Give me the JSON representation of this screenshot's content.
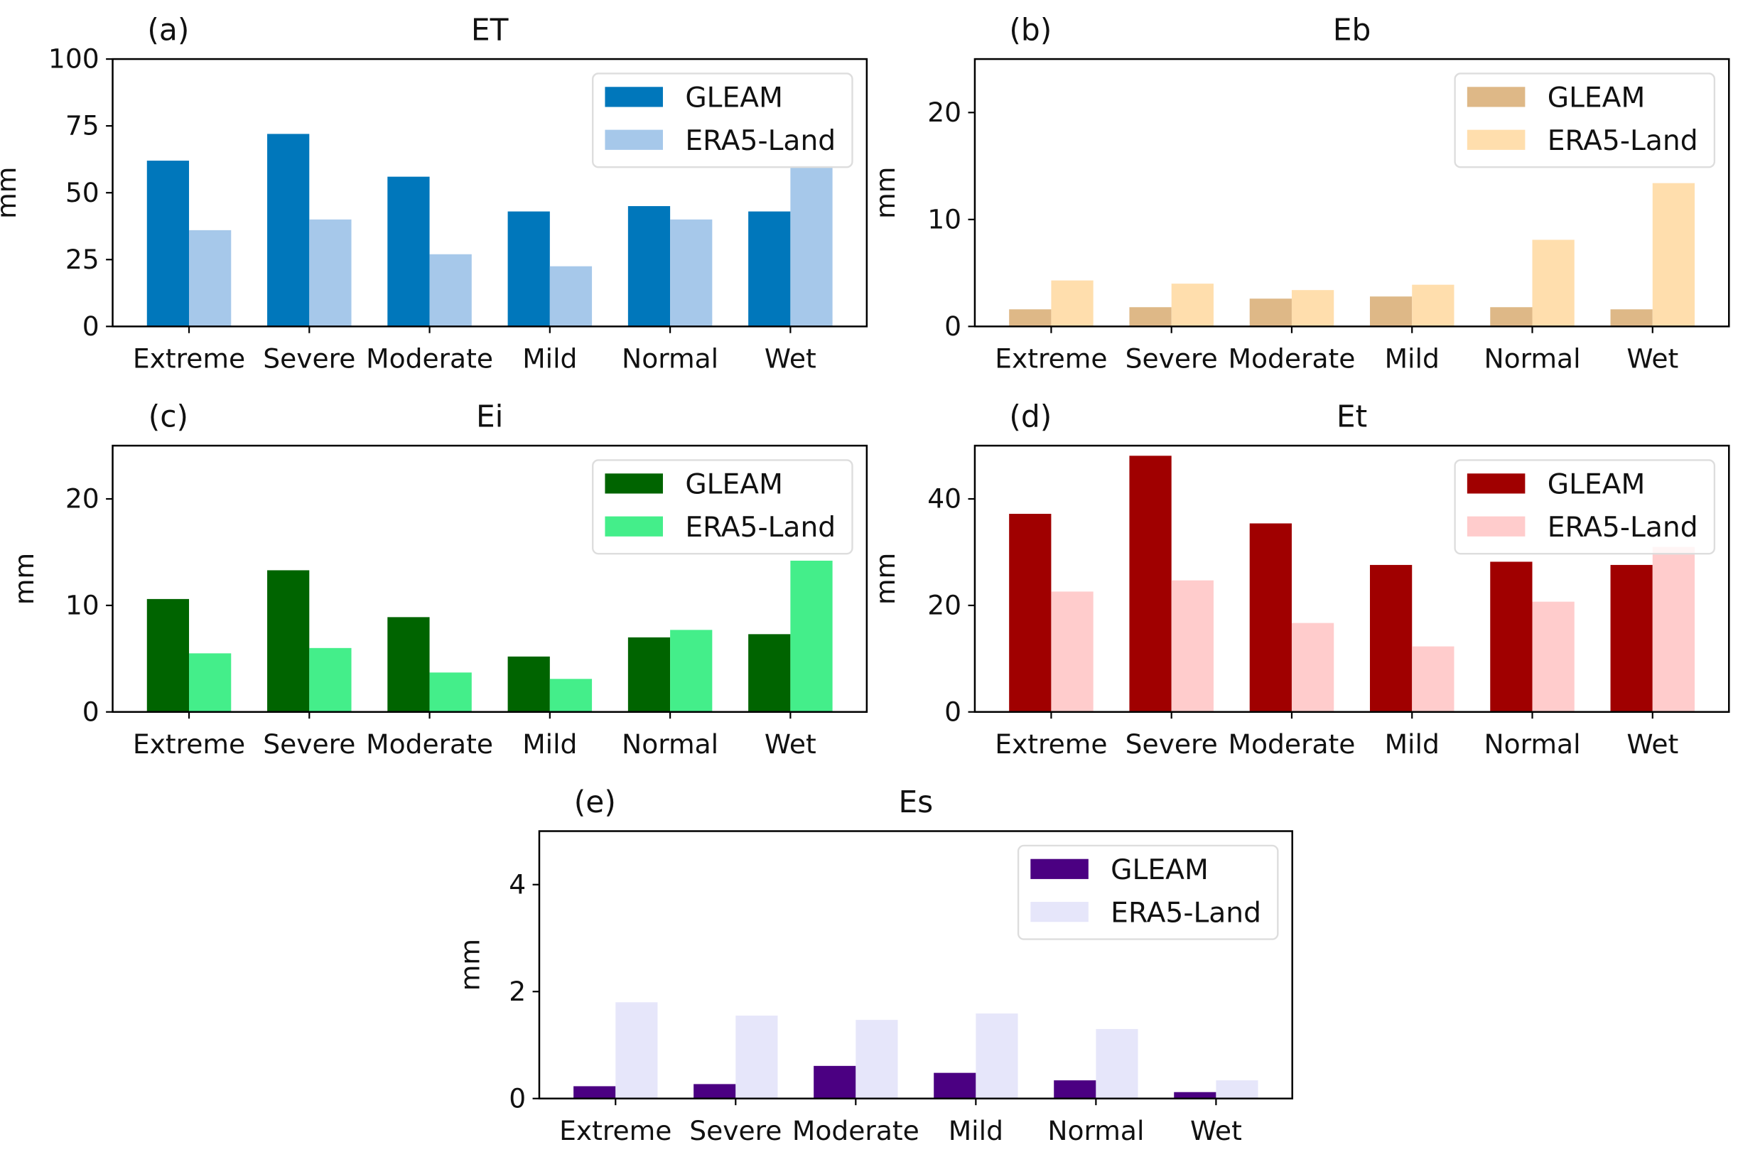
{
  "chart_data": [
    {
      "type": "bar",
      "panel_label": "(a)",
      "title": "ET",
      "ylabel": "mm",
      "ylim": [
        0,
        100
      ],
      "yticks": [
        0,
        25,
        50,
        75,
        100
      ],
      "categories": [
        "Extreme",
        "Severe",
        "Moderate",
        "Mild",
        "Normal",
        "Wet"
      ],
      "legend_position": "top-right",
      "series": [
        {
          "name": "GLEAM",
          "color": "#0077bb",
          "values": [
            62,
            72,
            56,
            43,
            45,
            43
          ]
        },
        {
          "name": "ERA5-Land",
          "color": "#a6c8ea",
          "values": [
            36,
            40,
            27,
            22.5,
            40,
            60
          ]
        }
      ]
    },
    {
      "type": "bar",
      "panel_label": "(b)",
      "title": "Eb",
      "ylabel": "mm",
      "ylim": [
        0,
        25
      ],
      "yticks": [
        0,
        10,
        20
      ],
      "categories": [
        "Extreme",
        "Severe",
        "Moderate",
        "Mild",
        "Normal",
        "Wet"
      ],
      "legend_position": "top-right",
      "series": [
        {
          "name": "GLEAM",
          "color": "#deb887",
          "values": [
            1.6,
            1.8,
            2.6,
            2.8,
            1.8,
            1.6
          ]
        },
        {
          "name": "ERA5-Land",
          "color": "#ffdead",
          "values": [
            4.3,
            4.0,
            3.4,
            3.9,
            8.1,
            13.4
          ]
        }
      ]
    },
    {
      "type": "bar",
      "panel_label": "(c)",
      "title": "Ei",
      "ylabel": "mm",
      "ylim": [
        0,
        25
      ],
      "yticks": [
        0,
        10,
        20
      ],
      "categories": [
        "Extreme",
        "Severe",
        "Moderate",
        "Mild",
        "Normal",
        "Wet"
      ],
      "legend_position": "top-right",
      "series": [
        {
          "name": "GLEAM",
          "color": "#006400",
          "values": [
            10.6,
            13.3,
            8.9,
            5.2,
            7.0,
            7.3
          ]
        },
        {
          "name": "ERA5-Land",
          "color": "#44ee8a",
          "values": [
            5.5,
            6.0,
            3.7,
            3.1,
            7.7,
            14.2
          ]
        }
      ]
    },
    {
      "type": "bar",
      "panel_label": "(d)",
      "title": "Et",
      "ylabel": "mm",
      "ylim": [
        0,
        50
      ],
      "yticks": [
        0,
        20,
        40
      ],
      "categories": [
        "Extreme",
        "Severe",
        "Moderate",
        "Mild",
        "Normal",
        "Wet"
      ],
      "legend_position": "top-right",
      "series": [
        {
          "name": "GLEAM",
          "color": "#a00000",
          "values": [
            37.2,
            48.1,
            35.4,
            27.6,
            28.2,
            27.6
          ]
        },
        {
          "name": "ERA5-Land",
          "color": "#ffcccc",
          "values": [
            22.6,
            24.7,
            16.7,
            12.3,
            20.7,
            31
          ]
        }
      ]
    },
    {
      "type": "bar",
      "panel_label": "(e)",
      "title": "Es",
      "ylabel": "mm",
      "ylim": [
        0,
        5
      ],
      "yticks": [
        0,
        2,
        4
      ],
      "categories": [
        "Extreme",
        "Severe",
        "Moderate",
        "Mild",
        "Normal",
        "Wet"
      ],
      "legend_position": "top-right",
      "series": [
        {
          "name": "GLEAM",
          "color": "#4b0082",
          "values": [
            0.23,
            0.27,
            0.61,
            0.48,
            0.34,
            0.12
          ]
        },
        {
          "name": "ERA5-Land",
          "color": "#e6e6fa",
          "values": [
            1.8,
            1.55,
            1.47,
            1.59,
            1.3,
            0.34
          ]
        }
      ]
    }
  ]
}
